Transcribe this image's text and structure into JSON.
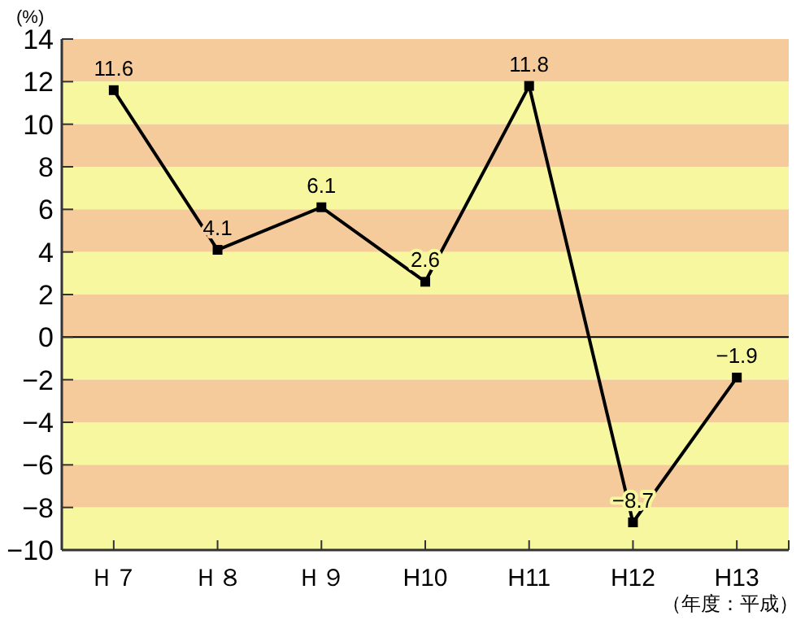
{
  "chart_data": {
    "type": "line",
    "categories": [
      "Ｈ７",
      "Ｈ８",
      "Ｈ９",
      "H10",
      "H11",
      "H12",
      "H13"
    ],
    "series": [
      {
        "color": "#000000",
        "values": [
          11.6,
          4.1,
          6.1,
          2.6,
          11.8,
          -8.7,
          -1.9
        ]
      }
    ],
    "ylabel": "(%)",
    "xlabel": "（年度：平成）",
    "ylim": [
      -10,
      14
    ],
    "yticks": [
      -10,
      -8,
      -6,
      -4,
      -2,
      0,
      2,
      4,
      6,
      8,
      10,
      12,
      14
    ],
    "marker": "square",
    "line_style": "solid",
    "data_labels": true,
    "grid": false,
    "ref_lines": [
      {
        "axis": "y",
        "value": 0,
        "color": "#000000"
      }
    ],
    "bands": [
      {
        "axis": "y",
        "from": 12,
        "to": 14,
        "color": "#f5cb9b"
      },
      {
        "axis": "y",
        "from": 10,
        "to": 12,
        "color": "#f7f7a0"
      },
      {
        "axis": "y",
        "from": 8,
        "to": 10,
        "color": "#f5cb9b"
      },
      {
        "axis": "y",
        "from": 6,
        "to": 8,
        "color": "#f7f7a0"
      },
      {
        "axis": "y",
        "from": 4,
        "to": 6,
        "color": "#f5cb9b"
      },
      {
        "axis": "y",
        "from": 2,
        "to": 4,
        "color": "#f7f7a0"
      },
      {
        "axis": "y",
        "from": 0,
        "to": 2,
        "color": "#f5cb9b"
      },
      {
        "axis": "y",
        "from": -2,
        "to": 0,
        "color": "#f7f7a0"
      },
      {
        "axis": "y",
        "from": -4,
        "to": -2,
        "color": "#f5cb9b"
      },
      {
        "axis": "y",
        "from": -6,
        "to": -4,
        "color": "#f7f7a0"
      },
      {
        "axis": "y",
        "from": -8,
        "to": -6,
        "color": "#f5cb9b"
      },
      {
        "axis": "y",
        "from": -10,
        "to": -8,
        "color": "#f7f7a0"
      }
    ]
  }
}
